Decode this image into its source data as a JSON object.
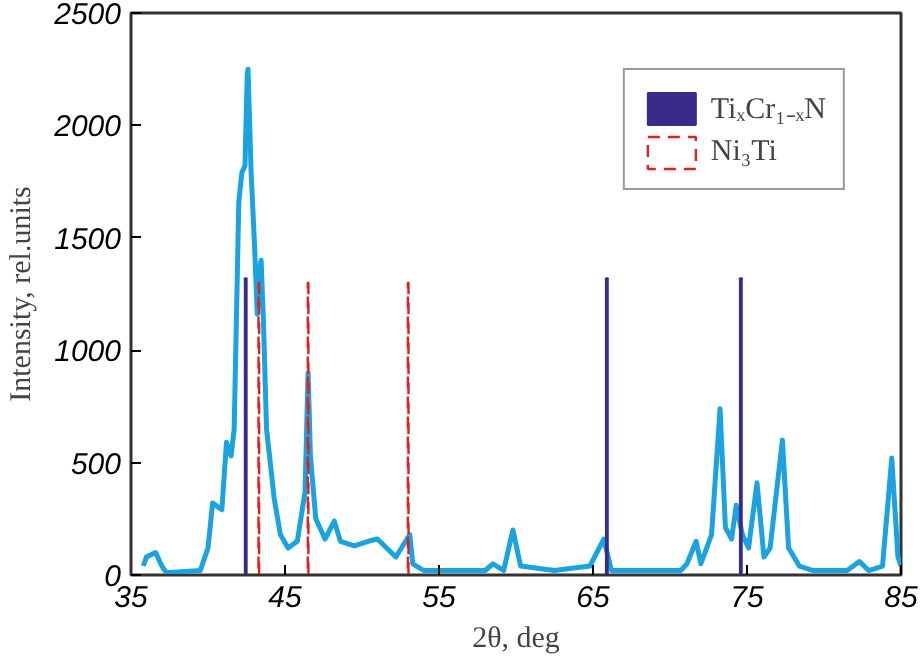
{
  "chart_data": {
    "type": "line",
    "xlabel": "2θ, deg",
    "ylabel": "Intensity, rel.units",
    "xlim": [
      35,
      85
    ],
    "ylim": [
      0,
      2500
    ],
    "xticks": [
      35,
      45,
      55,
      65,
      75,
      85
    ],
    "yticks": [
      0,
      500,
      1000,
      1500,
      2000,
      2500
    ],
    "grid": false,
    "legend": "top right",
    "series": [
      {
        "color": "#1aa3e0",
        "x": [
          35.8,
          36.0,
          36.6,
          37.0,
          37.3,
          39.5,
          40.0,
          40.3,
          40.9,
          41.2,
          41.5,
          41.7,
          42.0,
          42.2,
          42.4,
          42.55,
          42.6,
          42.8,
          43.0,
          43.2,
          43.4,
          43.45,
          43.6,
          43.8,
          44.3,
          44.7,
          45.2,
          45.8,
          46.3,
          46.5,
          46.65,
          47.0,
          47.6,
          48.2,
          48.6,
          49.5,
          50.4,
          51.0,
          52.2,
          53.1,
          53.3,
          54.0,
          58.0,
          58.5,
          59.2,
          59.8,
          60.3,
          62.5,
          64.8,
          65.7,
          66.2,
          70.7,
          71.1,
          71.7,
          72.0,
          72.7,
          73.25,
          73.6,
          74.0,
          74.3,
          74.7,
          75.1,
          75.65,
          76.1,
          76.5,
          77.3,
          77.7,
          78.4,
          79.3,
          81.5,
          82.3,
          82.9,
          83.8,
          84.4,
          84.8,
          85.0
        ],
        "values": [
          40,
          80,
          100,
          40,
          10,
          20,
          120,
          320,
          290,
          590,
          530,
          650,
          1660,
          1790,
          1820,
          2230,
          2250,
          1790,
          1500,
          1160,
          1380,
          1400,
          1130,
          650,
          340,
          180,
          120,
          150,
          370,
          900,
          530,
          250,
          160,
          240,
          150,
          130,
          150,
          160,
          80,
          180,
          50,
          20,
          20,
          50,
          20,
          200,
          40,
          20,
          40,
          160,
          20,
          20,
          50,
          150,
          50,
          180,
          740,
          210,
          160,
          310,
          180,
          120,
          410,
          80,
          120,
          600,
          120,
          40,
          20,
          20,
          60,
          20,
          40,
          520,
          80,
          40
        ]
      },
      {
        "type": "bar",
        "name": "TiₓCr₁₋ₓN",
        "color": "#3a2a8a",
        "line_style": "solid",
        "x": [
          42.45,
          65.9,
          74.6
        ],
        "values": [
          1320,
          1320,
          1320
        ]
      },
      {
        "type": "bar",
        "name": "Ni₃Ti",
        "color": "#e02020",
        "line_style": "dashed",
        "x": [
          43.3,
          46.5,
          53.0
        ],
        "values": [
          1300,
          1300,
          1300
        ]
      }
    ]
  }
}
